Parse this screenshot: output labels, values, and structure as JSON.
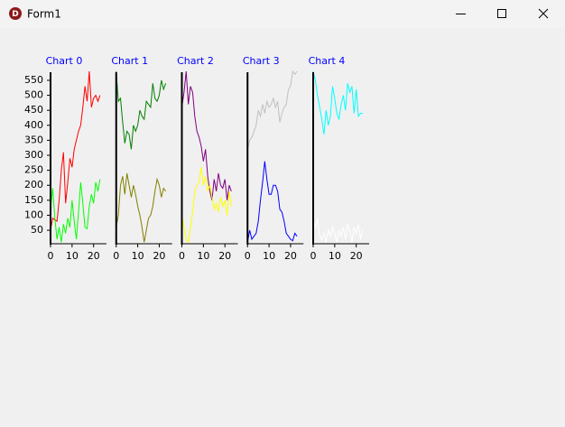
{
  "window": {
    "title": "Form1"
  },
  "chart_data": [
    {
      "type": "line",
      "title": "Chart 0",
      "xlim": [
        0,
        26
      ],
      "xticks": [
        0,
        10,
        20
      ],
      "ylim": [
        5,
        577
      ],
      "yticks": [
        50,
        100,
        150,
        200,
        250,
        300,
        350,
        400,
        450,
        500,
        550
      ],
      "x": [
        0,
        1,
        2,
        3,
        4,
        5,
        6,
        7,
        8,
        9,
        10,
        11,
        12,
        13,
        14,
        15,
        16,
        17,
        18,
        19,
        20,
        21,
        22,
        23
      ],
      "series": [
        {
          "color": "#ff0000",
          "values": [
            50,
            90,
            85,
            80,
            150,
            250,
            310,
            140,
            210,
            290,
            260,
            320,
            350,
            380,
            400,
            460,
            530,
            480,
            580,
            460,
            490,
            500,
            480,
            500
          ]
        },
        {
          "color": "#00ff00",
          "values": [
            120,
            190,
            90,
            20,
            60,
            10,
            70,
            40,
            90,
            60,
            150,
            80,
            20,
            110,
            210,
            140,
            60,
            55,
            130,
            170,
            140,
            210,
            180,
            220
          ]
        }
      ]
    },
    {
      "type": "line",
      "title": "Chart 1",
      "xlim": [
        0,
        26
      ],
      "xticks": [
        0,
        10,
        20
      ],
      "ylim": [
        5,
        577
      ],
      "x": [
        0,
        1,
        2,
        3,
        4,
        5,
        6,
        7,
        8,
        9,
        10,
        11,
        12,
        13,
        14,
        15,
        16,
        17,
        18,
        19,
        20,
        21,
        22,
        23
      ],
      "series": [
        {
          "color": "#008000",
          "values": [
            580,
            480,
            490,
            410,
            340,
            380,
            370,
            320,
            400,
            380,
            400,
            450,
            430,
            420,
            480,
            470,
            460,
            540,
            490,
            480,
            500,
            550,
            520,
            540
          ]
        },
        {
          "color": "#808000",
          "values": [
            60,
            100,
            200,
            230,
            170,
            240,
            200,
            160,
            200,
            170,
            130,
            100,
            60,
            10,
            50,
            90,
            100,
            130,
            180,
            220,
            200,
            160,
            190,
            180
          ]
        }
      ]
    },
    {
      "type": "line",
      "title": "Chart 2",
      "xlim": [
        0,
        26
      ],
      "xticks": [
        0,
        10,
        20
      ],
      "ylim": [
        5,
        577
      ],
      "x": [
        0,
        1,
        2,
        3,
        4,
        5,
        6,
        7,
        8,
        9,
        10,
        11,
        12,
        13,
        14,
        15,
        16,
        17,
        18,
        19,
        20,
        21,
        22,
        23
      ],
      "series": [
        {
          "color": "#800080",
          "values": [
            460,
            510,
            580,
            470,
            530,
            510,
            430,
            380,
            360,
            330,
            280,
            320,
            230,
            180,
            150,
            220,
            180,
            240,
            200,
            190,
            220,
            150,
            200,
            180
          ]
        },
        {
          "color": "#ffff00",
          "values": [
            100,
            60,
            20,
            10,
            60,
            110,
            180,
            200,
            210,
            260,
            200,
            230,
            180,
            200,
            160,
            120,
            140,
            110,
            160,
            130,
            150,
            100,
            180,
            130
          ]
        }
      ]
    },
    {
      "type": "line",
      "title": "Chart 3",
      "xlim": [
        0,
        26
      ],
      "xticks": [
        0,
        10,
        20
      ],
      "ylim": [
        5,
        577
      ],
      "x": [
        0,
        1,
        2,
        3,
        4,
        5,
        6,
        7,
        8,
        9,
        10,
        11,
        12,
        13,
        14,
        15,
        16,
        17,
        18,
        19,
        20,
        21,
        22,
        23
      ],
      "series": [
        {
          "color": "#c0c0c0",
          "values": [
            320,
            350,
            360,
            380,
            400,
            450,
            430,
            470,
            440,
            480,
            460,
            470,
            490,
            460,
            480,
            410,
            440,
            460,
            470,
            520,
            530,
            580,
            570,
            580
          ]
        },
        {
          "color": "#0000ff",
          "values": [
            10,
            50,
            20,
            30,
            40,
            80,
            150,
            210,
            280,
            220,
            170,
            170,
            200,
            200,
            180,
            120,
            110,
            80,
            40,
            30,
            20,
            15,
            40,
            30
          ]
        }
      ]
    },
    {
      "type": "line",
      "title": "Chart 4",
      "xlim": [
        0,
        26
      ],
      "xticks": [
        0,
        10,
        20
      ],
      "ylim": [
        5,
        577
      ],
      "x": [
        0,
        1,
        2,
        3,
        4,
        5,
        6,
        7,
        8,
        9,
        10,
        11,
        12,
        13,
        14,
        15,
        16,
        17,
        18,
        19,
        20,
        21,
        22,
        23
      ],
      "series": [
        {
          "color": "#00ffff",
          "values": [
            580,
            550,
            500,
            460,
            420,
            370,
            450,
            400,
            430,
            530,
            490,
            440,
            420,
            470,
            500,
            450,
            540,
            510,
            530,
            440,
            520,
            430,
            440,
            440
          ]
        },
        {
          "color": "#ffffff",
          "values": [
            80,
            60,
            90,
            30,
            20,
            40,
            10,
            50,
            30,
            60,
            40,
            10,
            50,
            30,
            60,
            20,
            70,
            50,
            10,
            60,
            40,
            70,
            20,
            50
          ]
        }
      ]
    }
  ]
}
